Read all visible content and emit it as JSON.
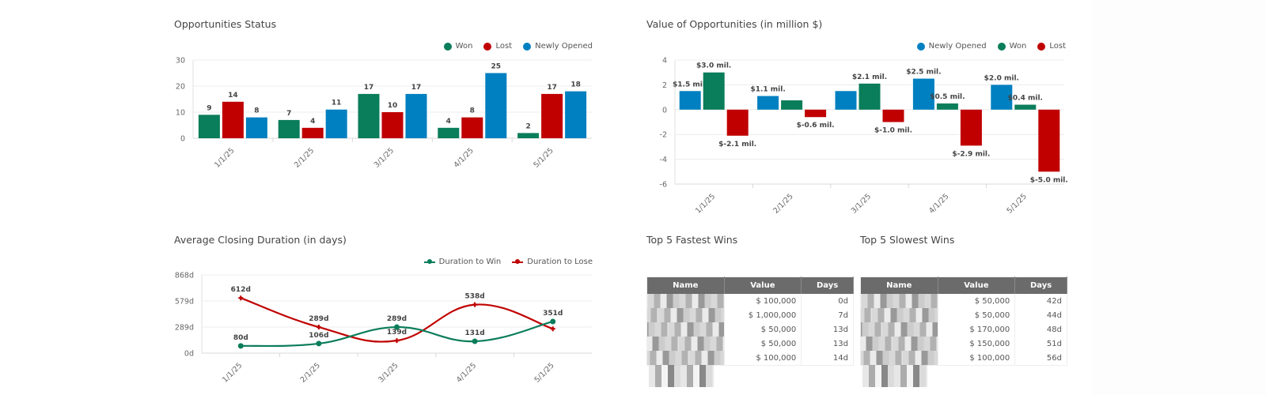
{
  "colors": {
    "won": "#0a7d5a",
    "lost": "#c00000",
    "newly_opened": "#0080c0",
    "header": "#6b6b6b"
  },
  "panels": {
    "status": {
      "title": "Opportunities Status",
      "legend": [
        "Won",
        "Lost",
        "Newly Opened"
      ]
    },
    "value": {
      "title": "Value of Opportunities (in million $)",
      "legend": [
        "Newly Opened",
        "Won",
        "Lost"
      ]
    },
    "duration": {
      "title": "Average Closing Duration (in days)",
      "legend": [
        "Duration to Win",
        "Duration to Lose"
      ]
    },
    "fastest": {
      "title": "Top 5 Fastest Wins",
      "columns": [
        "Name",
        "Value",
        "Days"
      ],
      "rows": [
        {
          "value": "$ 100,000",
          "days": "0d"
        },
        {
          "value": "$ 1,000,000",
          "days": "7d"
        },
        {
          "value": "$ 50,000",
          "days": "13d"
        },
        {
          "value": "$ 50,000",
          "days": "13d"
        },
        {
          "value": "$ 100,000",
          "days": "14d"
        }
      ]
    },
    "slowest": {
      "title": "Top 5 Slowest Wins",
      "columns": [
        "Name",
        "Value",
        "Days"
      ],
      "rows": [
        {
          "value": "$ 50,000",
          "days": "42d"
        },
        {
          "value": "$ 50,000",
          "days": "44d"
        },
        {
          "value": "$ 170,000",
          "days": "48d"
        },
        {
          "value": "$ 150,000",
          "days": "51d"
        },
        {
          "value": "$ 100,000",
          "days": "56d"
        }
      ]
    }
  },
  "chart_data": [
    {
      "type": "bar",
      "title": "Opportunities Status",
      "categories": [
        "1/1/25",
        "2/1/25",
        "3/1/25",
        "4/1/25",
        "5/1/25"
      ],
      "series": [
        {
          "name": "Won",
          "values": [
            9,
            7,
            17,
            4,
            2
          ],
          "labels": [
            "9",
            "7",
            "17",
            "4",
            "2"
          ]
        },
        {
          "name": "Lost",
          "values": [
            14,
            4,
            10,
            8,
            17
          ],
          "labels": [
            "14",
            "4",
            "10",
            "8",
            "17"
          ]
        },
        {
          "name": "Newly Opened",
          "values": [
            8,
            11,
            17,
            25,
            18
          ],
          "labels": [
            "8",
            "11",
            "17",
            "25",
            "18"
          ]
        }
      ],
      "yticks": [
        "0",
        "10",
        "20",
        "30"
      ],
      "ylim": [
        0,
        30
      ],
      "legend": "top-right",
      "grid": true
    },
    {
      "type": "bar",
      "title": "Value of Opportunities (in million $)",
      "categories": [
        "1/1/25",
        "2/1/25",
        "3/1/25",
        "4/1/25",
        "5/1/25"
      ],
      "series": [
        {
          "name": "Newly Opened",
          "values": [
            1.5,
            1.1,
            1.5,
            2.5,
            2.0
          ],
          "labels": [
            "$1.5 mil.",
            "$1.1 mil.",
            "",
            "$2.5 mil.",
            "$2.0 mil."
          ]
        },
        {
          "name": "Won",
          "values": [
            3.0,
            0.75,
            2.1,
            0.5,
            0.4
          ],
          "labels": [
            "$3.0 mil.",
            "",
            "$2.1 mil.",
            "$0.5 mil.",
            "$0.4 mil."
          ]
        },
        {
          "name": "Lost",
          "values": [
            -2.1,
            -0.6,
            -1.0,
            -2.9,
            -5.0
          ],
          "labels": [
            "$-2.1 mil.",
            "$-0.6 mil.",
            "$-1.0 mil.",
            "$-2.9 mil.",
            "$-5.0 mil."
          ]
        }
      ],
      "yticks": [
        "-6",
        "-4",
        "-2",
        "0",
        "2",
        "4"
      ],
      "ylim": [
        -6,
        4
      ],
      "legend": "top-right",
      "grid": true
    },
    {
      "type": "line",
      "title": "Average Closing Duration (in days)",
      "categories": [
        "1/1/25",
        "2/1/25",
        "3/1/25",
        "4/1/25",
        "5/1/25"
      ],
      "series": [
        {
          "name": "Duration to Win",
          "values": [
            80,
            106,
            289,
            131,
            351
          ],
          "labels": [
            "80d",
            "106d",
            "289d",
            "131d",
            "351d"
          ]
        },
        {
          "name": "Duration to Lose",
          "values": [
            612,
            289,
            139,
            538,
            270
          ],
          "labels": [
            "612d",
            "289d",
            "139d",
            "538d",
            ""
          ]
        }
      ],
      "yticks": [
        "0d",
        "289d",
        "579d",
        "868d"
      ],
      "ylim": [
        0,
        868
      ],
      "legend": "top-right",
      "grid": true
    }
  ]
}
